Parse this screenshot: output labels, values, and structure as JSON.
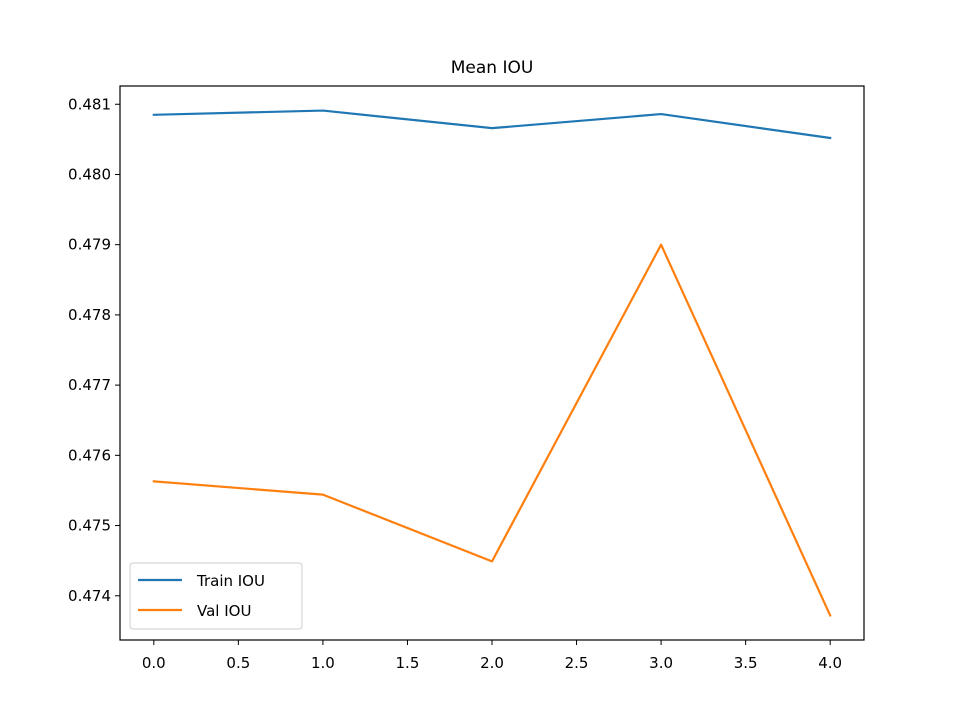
{
  "chart_data": {
    "type": "line",
    "title": "Mean IOU",
    "xlabel": "",
    "ylabel": "",
    "x": [
      0,
      1,
      2,
      3,
      4
    ],
    "xlim": [
      -0.2,
      4.2
    ],
    "ylim": [
      0.47337,
      0.48126
    ],
    "xticks": [
      0.0,
      0.5,
      1.0,
      1.5,
      2.0,
      2.5,
      3.0,
      3.5,
      4.0
    ],
    "xtick_labels": [
      "0.0",
      "0.5",
      "1.0",
      "1.5",
      "2.0",
      "2.5",
      "3.0",
      "3.5",
      "4.0"
    ],
    "yticks": [
      0.474,
      0.475,
      0.476,
      0.477,
      0.478,
      0.479,
      0.48,
      0.481
    ],
    "ytick_labels": [
      "0.474",
      "0.475",
      "0.476",
      "0.477",
      "0.478",
      "0.479",
      "0.480",
      "0.481"
    ],
    "grid": false,
    "legend_position": "lower-left",
    "series": [
      {
        "name": "Train IOU",
        "color": "#1f77b4",
        "values": [
          0.48085,
          0.48091,
          0.48066,
          0.48086,
          0.48052
        ]
      },
      {
        "name": "Val IOU",
        "color": "#ff7f0e",
        "values": [
          0.47563,
          0.47544,
          0.47449,
          0.479,
          0.47372
        ]
      }
    ]
  }
}
